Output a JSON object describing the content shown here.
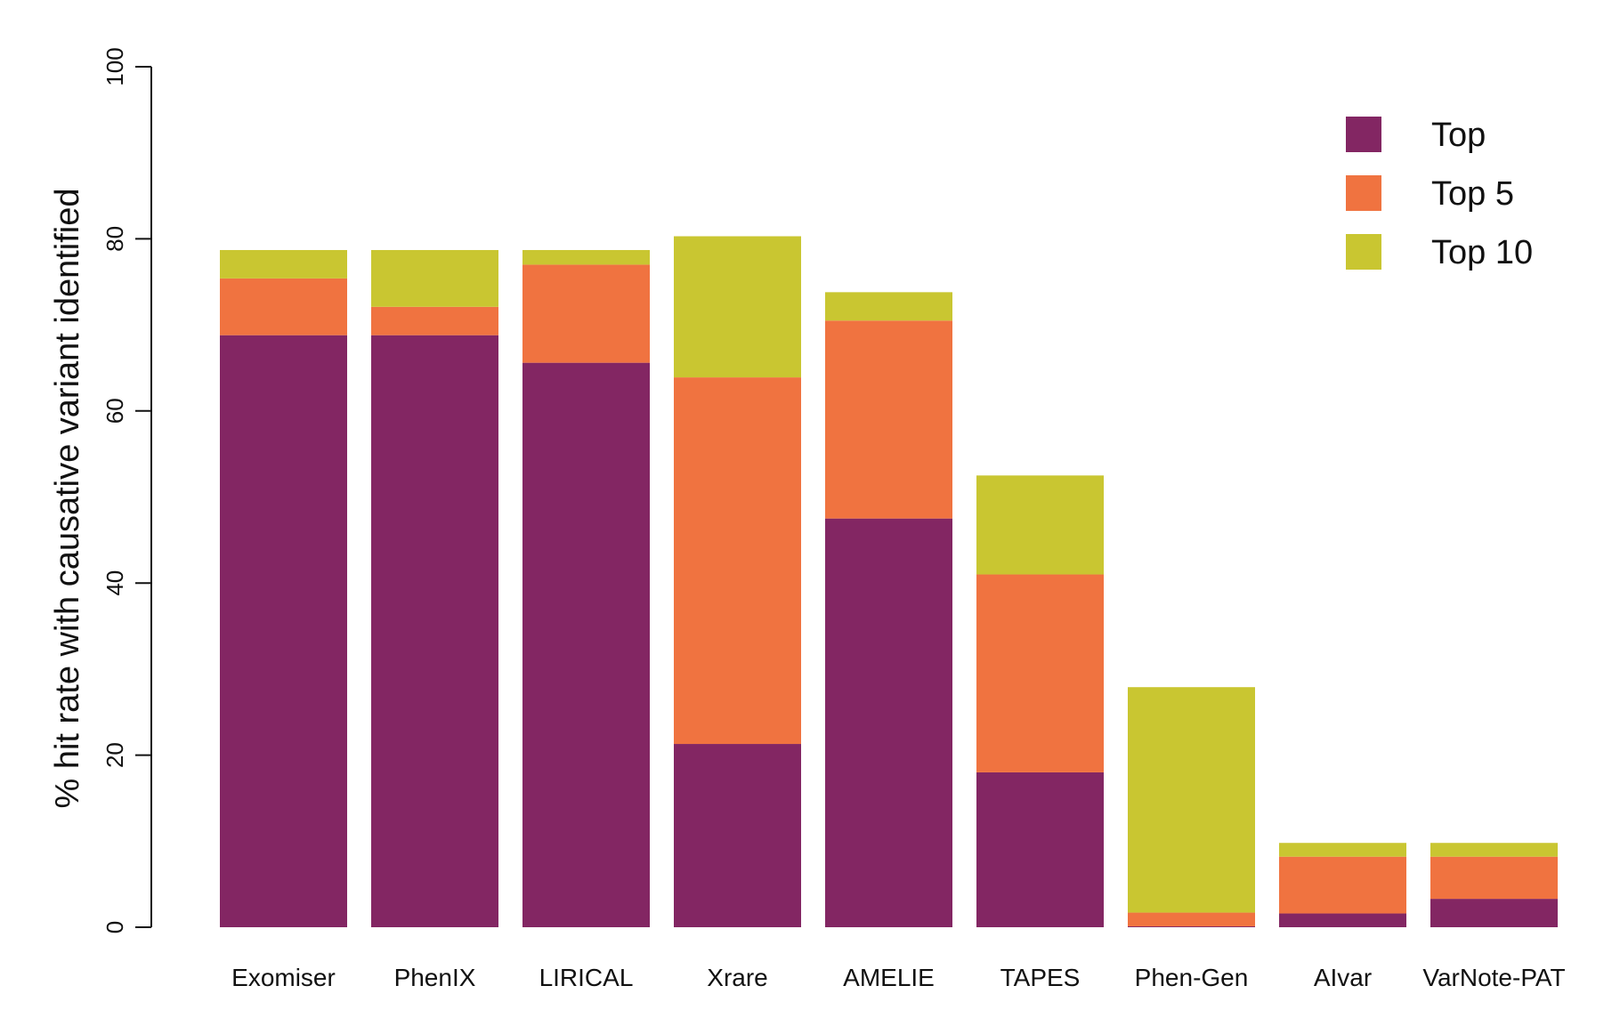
{
  "chart_data": {
    "type": "bar",
    "stacked": true,
    "title": "",
    "xlabel": "",
    "ylabel": "% hit rate with causative variant identified",
    "ylim": [
      0,
      100
    ],
    "yticks": [
      0,
      20,
      40,
      60,
      80,
      100
    ],
    "grid": false,
    "legend_position": "top-right",
    "categories": [
      "Exomiser",
      "PhenIX",
      "LIRICAL",
      "Xrare",
      "AMELIE",
      "TAPES",
      "Phen-Gen",
      "AIvar",
      "VarNote-PAT"
    ],
    "series": [
      {
        "name": "Top",
        "color": "#832663",
        "values": [
          68.8,
          68.8,
          65.6,
          21.3,
          47.5,
          18.0,
          0.1,
          1.6,
          3.3
        ]
      },
      {
        "name": "Top 5",
        "color": "#F07340",
        "values": [
          6.6,
          3.3,
          11.4,
          42.6,
          23.0,
          23.0,
          1.6,
          6.6,
          4.9
        ]
      },
      {
        "name": "Top 10",
        "color": "#C9C631",
        "values": [
          3.3,
          6.6,
          1.7,
          16.4,
          3.3,
          11.5,
          26.2,
          1.6,
          1.6
        ]
      }
    ]
  }
}
